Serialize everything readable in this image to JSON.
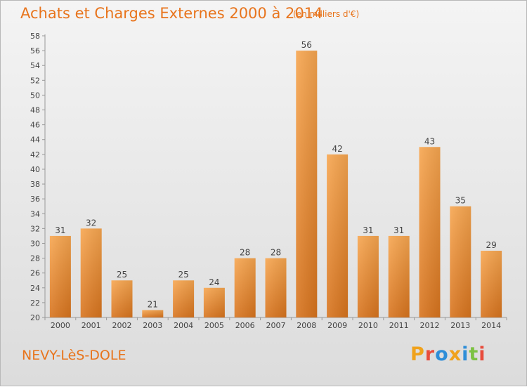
{
  "header": {
    "title": "Achats et Charges Externes 2000 à 2014",
    "subtitle": "(en milliers d'€)"
  },
  "footer": {
    "commune": "NEVY-LèS-DOLE",
    "logo_text": "Proxiti"
  },
  "colors": {
    "bar_light": "#f7a650",
    "bar_dark": "#d8741e",
    "text_orange": "#e8741c"
  },
  "chart_data": {
    "type": "bar",
    "categories": [
      "2000",
      "2001",
      "2002",
      "2003",
      "2004",
      "2005",
      "2006",
      "2007",
      "2008",
      "2009",
      "2010",
      "2011",
      "2012",
      "2013",
      "2014"
    ],
    "values": [
      31,
      32,
      25,
      21,
      25,
      24,
      28,
      28,
      56,
      42,
      31,
      31,
      43,
      35,
      29
    ],
    "title": "Achats et Charges Externes 2000 à 2014",
    "subtitle": "(en milliers d'€)",
    "ylim": [
      20,
      58
    ],
    "ytick_step": 2,
    "grid": false,
    "data_labels": true
  }
}
